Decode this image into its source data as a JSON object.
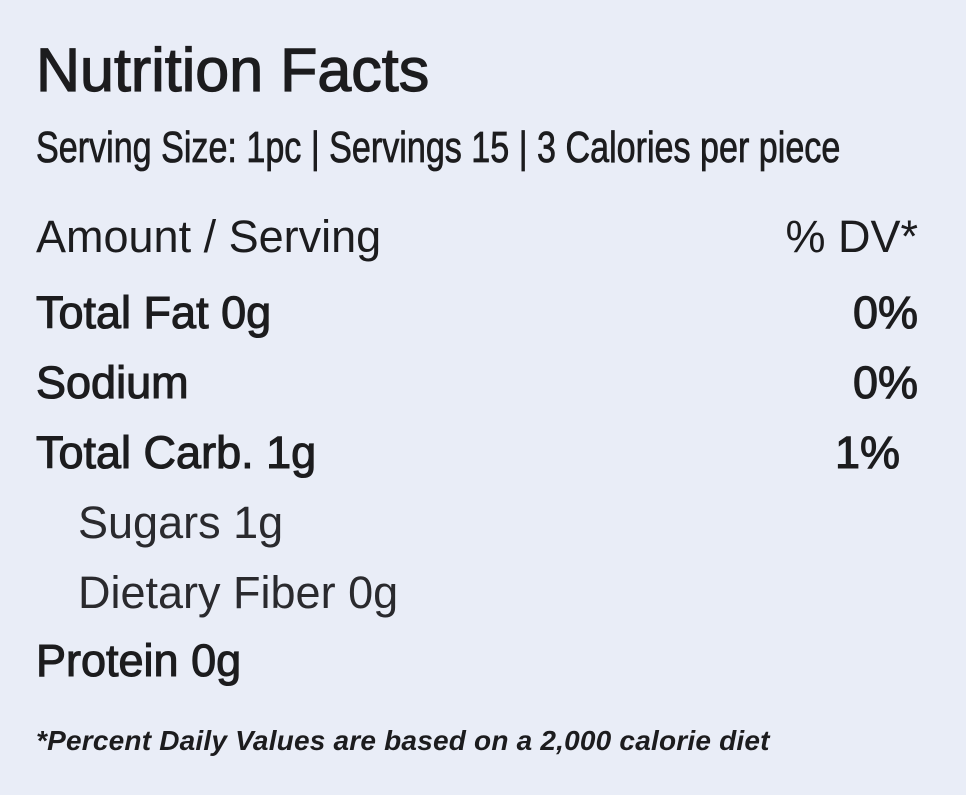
{
  "header": {
    "title": "Nutrition Facts",
    "serving": "Serving Size: 1pc | Servings 15 | 3 Calories per piece"
  },
  "table": {
    "header": {
      "label": "Amount / Serving",
      "dv": "% DV*"
    },
    "rows": [
      {
        "label": "Total Fat 0g",
        "dv": "0%"
      },
      {
        "label": "Sodium",
        "dv": "0%"
      },
      {
        "label": "Total Carb. 1g",
        "dv": "1%"
      },
      {
        "label": "Sugars 1g"
      },
      {
        "label": "Dietary Fiber 0g"
      },
      {
        "label": "Protein 0g"
      }
    ]
  },
  "footnote": "*Percent Daily Values are based on a 2,000 calorie diet"
}
